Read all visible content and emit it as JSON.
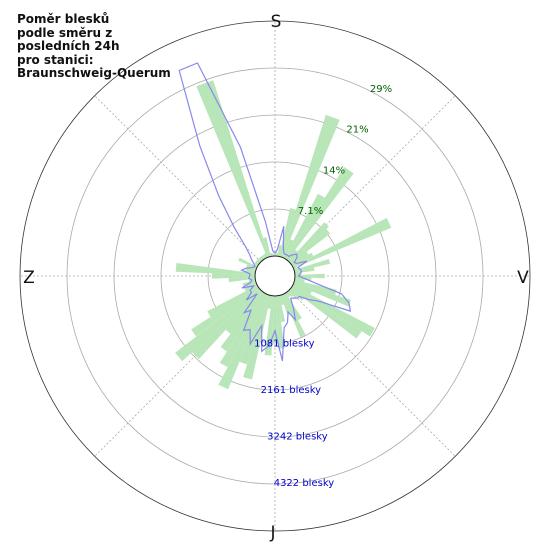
{
  "chart_data": {
    "type": "polar",
    "title_lines": [
      "Poměr blesků",
      "podle směru z",
      "posledních 24h",
      "pro stanici:",
      "Braunschweig-Querum"
    ],
    "directions": {
      "top": "S",
      "right": "V",
      "bottom": "J",
      "left": "Z"
    },
    "percent_ticks": [
      "7.1%",
      "14%",
      "21%",
      "29%"
    ],
    "count_ticks": [
      "1081 blesky",
      "2161 blesky",
      "3242 blesky",
      "4322 blesky"
    ],
    "percent_max": 35.5,
    "count_max": 5400,
    "grid": true,
    "sector_width_deg": 5,
    "series": [
      {
        "name": "percent",
        "kind": "bars",
        "color": "#b8e6b8",
        "direction_deg": [
          0,
          5,
          10,
          15,
          20,
          25,
          30,
          35,
          40,
          45,
          50,
          55,
          60,
          65,
          70,
          75,
          80,
          85,
          90,
          95,
          100,
          105,
          110,
          115,
          120,
          125,
          130,
          135,
          140,
          145,
          150,
          155,
          160,
          165,
          170,
          175,
          180,
          185,
          190,
          195,
          200,
          205,
          210,
          215,
          220,
          225,
          230,
          235,
          240,
          245,
          250,
          255,
          260,
          265,
          270,
          275,
          280,
          285,
          290,
          295,
          300,
          305,
          310,
          315,
          320,
          325,
          330,
          335,
          340,
          345,
          350,
          355
        ],
        "values": [
          0.3,
          0.5,
          1.7,
          7.5,
          22.5,
          3.0,
          11.0,
          16.5,
          2.0,
          8.0,
          7.5,
          3.0,
          3.5,
          16.0,
          0.5,
          5.5,
          3.0,
          1.0,
          4.5,
          2.5,
          1.5,
          6.5,
          9.0,
          3.0,
          14.0,
          12.5,
          2.5,
          1.5,
          1.0,
          0.8,
          4.5,
          7.0,
          3.0,
          1.5,
          4.0,
          8.0,
          7.0,
          9.0,
          2.0,
          13.0,
          11.0,
          15.5,
          12.5,
          10.5,
          8.0,
          14.0,
          16.0,
          12.0,
          8.5,
          2.0,
          1.5,
          2.0,
          1.0,
          4.0,
          6.5,
          12.0,
          1.5,
          1.5,
          1.5,
          3.0,
          0.6,
          0.6,
          0.6,
          0.6,
          0.6,
          0.6,
          0.6,
          0.7,
          28.0,
          3.0,
          0.5,
          0.4
        ]
      },
      {
        "name": "count",
        "kind": "line",
        "color": "#8888ee",
        "direction_deg": [
          0,
          5,
          10,
          15,
          20,
          25,
          30,
          35,
          40,
          45,
          50,
          55,
          60,
          65,
          70,
          75,
          80,
          85,
          90,
          95,
          100,
          105,
          110,
          115,
          120,
          125,
          130,
          135,
          140,
          145,
          150,
          155,
          160,
          165,
          170,
          175,
          180,
          185,
          190,
          195,
          200,
          205,
          210,
          215,
          220,
          225,
          230,
          235,
          240,
          245,
          250,
          255,
          260,
          265,
          270,
          275,
          280,
          285,
          290,
          295,
          300,
          305,
          310,
          315,
          320,
          325,
          330,
          335,
          340,
          345,
          350,
          355
        ],
        "values": [
          60,
          150,
          700,
          280,
          120,
          90,
          100,
          90,
          180,
          250,
          200,
          80,
          120,
          350,
          100,
          140,
          160,
          120,
          80,
          230,
          480,
          1120,
          1350,
          1450,
          700,
          480,
          270,
          260,
          200,
          170,
          380,
          650,
          420,
          650,
          750,
          1500,
          800,
          1150,
          1300,
          720,
          1200,
          900,
          980,
          500,
          640,
          120,
          400,
          200,
          200,
          80,
          350,
          120,
          80,
          150,
          120,
          120,
          320,
          230,
          100,
          50,
          100,
          200,
          300,
          500,
          1000,
          1800,
          3000,
          4750,
          4750,
          2600,
          800,
          120
        ]
      }
    ]
  }
}
